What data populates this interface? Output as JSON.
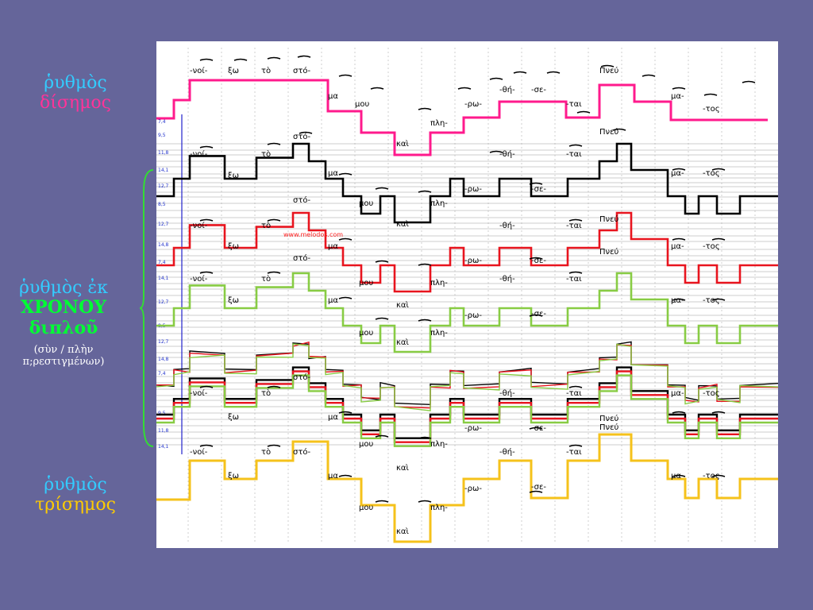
{
  "labels": {
    "disemos": {
      "line1": "ῥυθμὸς",
      "line2": "δίσημος"
    },
    "xronou": {
      "line1": "ῥυθμὸς ἐκ",
      "line2": "ΧΡΟΝΟΥ",
      "line3": "διπλοῦ",
      "line4": "(σὺν / πλὴν",
      "line5": "π;ρεστιγμένων)"
    },
    "trisemos": {
      "line1": "ῥυθμὸς",
      "line2": "τρίσημος"
    }
  },
  "watermark": "www.melodos.com",
  "syllables": [
    "-νοί-",
    "ξω",
    "τὸ",
    "στό-",
    "μα",
    "μου",
    "καὶ",
    "πλη-",
    "-ρω-",
    "-θή-",
    "-σε-",
    "-ται",
    "Πνεύ",
    "μα-",
    "-τος"
  ],
  "scale_numbers": [
    "7,4",
    "9,5",
    "11,8",
    "14,1",
    "12,7",
    "8,5",
    "12,7",
    "14,8"
  ],
  "colors": {
    "background": "#65659a",
    "disemos_line": "#ff1a8c",
    "black_line": "#000000",
    "red_line": "#e8141e",
    "green_line": "#88cc44",
    "yellow_line": "#f5c21b",
    "label_cyan": "#33ccff",
    "label_pink": "#ff3399",
    "label_green": "#00ff33",
    "label_yellow": "#ffcc00",
    "brace": "#33dd33"
  }
}
